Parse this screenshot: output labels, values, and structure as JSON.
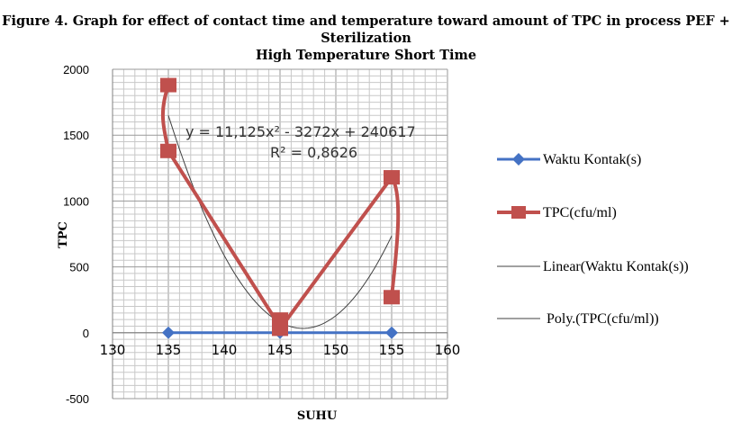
{
  "figure": {
    "title_line1": "Figure 4. Graph for effect of contact time and temperature toward amount of TPC in process PEF + Sterilization",
    "title_line2": "High Temperature Short Time"
  },
  "chart_data": {
    "type": "scatter",
    "xlabel": "SUHU",
    "ylabel": "TPC",
    "xlim": [
      130,
      160
    ],
    "ylim": [
      -500,
      2000
    ],
    "xticks": [
      130,
      135,
      140,
      145,
      150,
      155,
      160
    ],
    "yticks": [
      2000,
      1500,
      1000,
      500,
      0,
      -500
    ],
    "grid": true,
    "legend_position": "right",
    "series": [
      {
        "name": "Waktu Kontak(s)",
        "color": "#4472C4",
        "marker": "diamond",
        "points": [
          [
            135,
            0
          ],
          [
            145,
            0
          ],
          [
            155,
            0
          ]
        ]
      },
      {
        "name": "TPC(cfu/ml)",
        "color": "#C0504D",
        "marker": "square",
        "points": [
          [
            135,
            1880
          ],
          [
            135,
            1380
          ],
          [
            145,
            100
          ],
          [
            145,
            30
          ],
          [
            155,
            1180
          ],
          [
            155,
            270
          ]
        ]
      }
    ],
    "trendlines": [
      {
        "name": "Linear(Waktu Kontak(s))",
        "type": "linear",
        "color": "#404040"
      },
      {
        "name": "Poly.(TPC(cfu/ml))",
        "type": "polynomial",
        "color": "#404040",
        "order": 2,
        "x_range": [
          135,
          155
        ]
      }
    ],
    "equation": {
      "line1": "y = 11,125x² - 3272x + 240617",
      "line2": "R² = 0,8626"
    }
  }
}
